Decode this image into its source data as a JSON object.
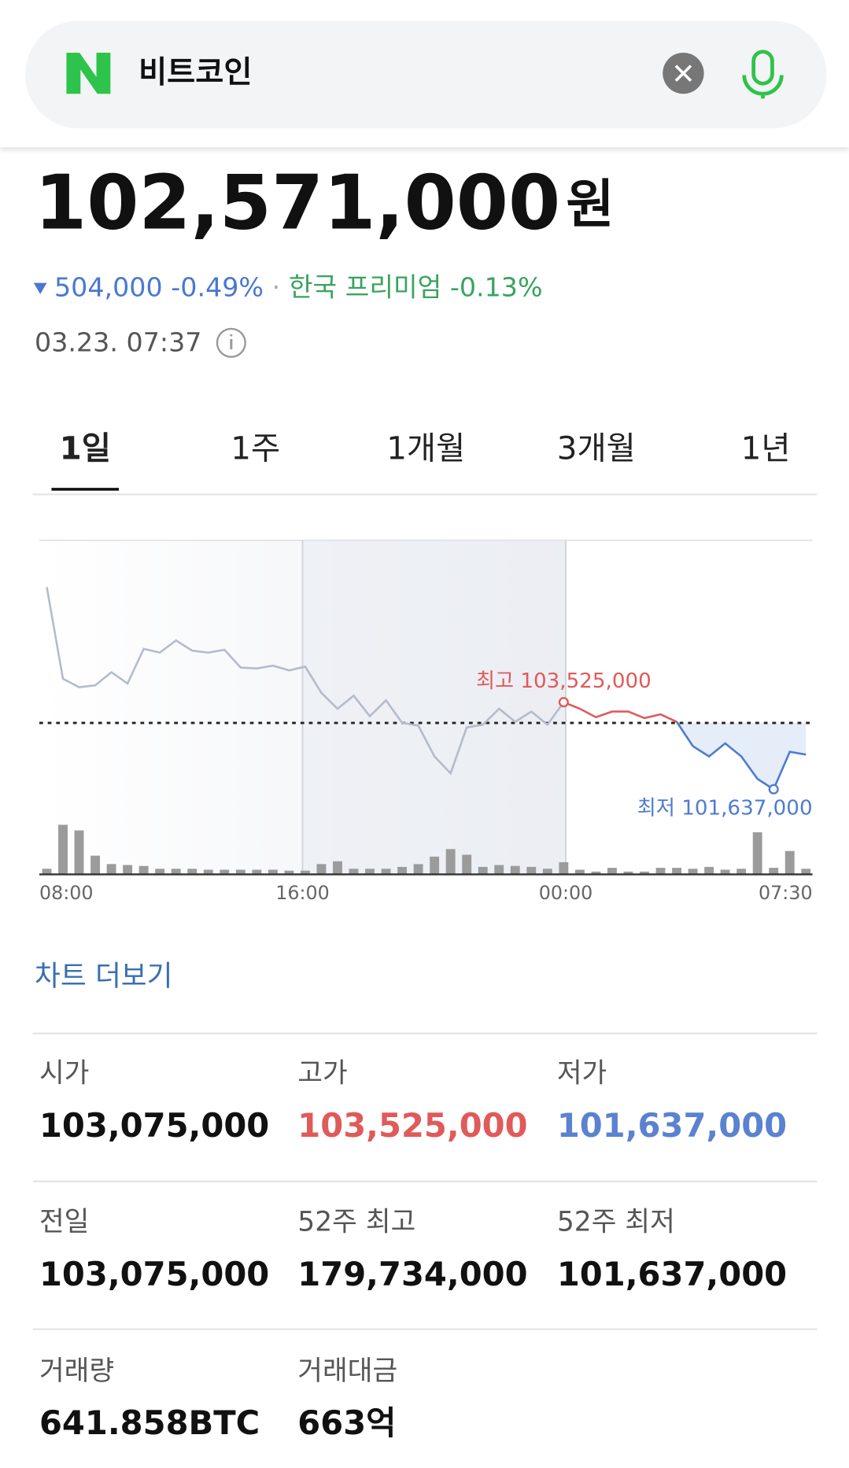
{
  "search": {
    "query": "비트코인"
  },
  "price": {
    "value": "102,571,000",
    "unit": "원",
    "change": "504,000",
    "change_pct": "-0.49%",
    "separator": "·",
    "premium_label": "한국 프리미엄",
    "premium": "-0.13%",
    "time": "03.23. 07:37"
  },
  "tabs": {
    "items": [
      "1일",
      "1주",
      "1개월",
      "3개월",
      "1년"
    ],
    "selected": 0
  },
  "chart": {
    "type": "line",
    "values": [
      106022000,
      104033000,
      103850000,
      103890000,
      104175000,
      103931000,
      104682000,
      104601000,
      104865000,
      104642000,
      104601000,
      104662000,
      104276000,
      104256000,
      104317000,
      104215000,
      104296000,
      103728000,
      103383000,
      103667000,
      103220000,
      103566000,
      103078000,
      103017000,
      102348000,
      101982000,
      102977000,
      103038000,
      103383000,
      103099000,
      103322000,
      103038000,
      103525000,
      103383000,
      103200000,
      103322000,
      103322000,
      103180000,
      103261000,
      103099000,
      102571000,
      102348000,
      102632000,
      102348000,
      101860000,
      101637000,
      102449000,
      102388000
    ],
    "volume": [
      6,
      53,
      47,
      20,
      11,
      10,
      9,
      6,
      6,
      6,
      5,
      5,
      5,
      5,
      5,
      4,
      4,
      11,
      14,
      6,
      6,
      6,
      8,
      11,
      19,
      27,
      21,
      8,
      10,
      9,
      8,
      6,
      13,
      5,
      3,
      7,
      3,
      3,
      7,
      7,
      6,
      8,
      5,
      6,
      45,
      7,
      25,
      6
    ],
    "ylim": [
      99790000,
      107037000
    ],
    "volume_ylim": [
      0,
      357
    ],
    "previous_close": 103075000,
    "high_index": 32,
    "low_index": 45,
    "high_label": "최고 103,525,000",
    "low_label": "최저 101,637,000",
    "xlim": [
      0,
      23.5
    ],
    "xticks": [
      {
        "value": 0,
        "label": "08:00"
      },
      {
        "value": 8,
        "label": "16:00"
      },
      {
        "value": 16,
        "label": "00:00"
      },
      {
        "value": 23.5,
        "label": "07:30"
      }
    ]
  },
  "more_link": "차트 더보기",
  "stats": [
    [
      {
        "label": "시가",
        "value": "103,075,000"
      },
      {
        "label": "고가",
        "value": "103,525,000"
      },
      {
        "label": "저가",
        "value": "101,637,000"
      }
    ],
    [
      {
        "label": "전일",
        "value": "103,075,000"
      },
      {
        "label": "52주 최고",
        "value": "179,734,000"
      },
      {
        "label": "52주 최저",
        "value": "101,637,000"
      }
    ],
    [
      {
        "label": "거래량",
        "value": "641.858BTC"
      },
      {
        "label": "거래대금",
        "value": "663억"
      }
    ]
  ]
}
